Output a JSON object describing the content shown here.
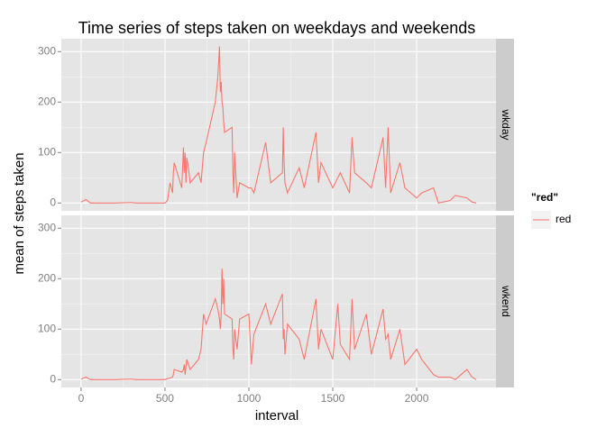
{
  "chart_data": {
    "type": "line",
    "title": "Time series of steps taken on weekdays and weekends",
    "x_label": "interval",
    "y_label": "mean of steps taken",
    "x": [
      0,
      30,
      55,
      100,
      200,
      300,
      330,
      400,
      500,
      515,
      530,
      545,
      550,
      555,
      600,
      610,
      615,
      620,
      625,
      630,
      640,
      650,
      700,
      715,
      730,
      745,
      800,
      815,
      825,
      830,
      835,
      840,
      845,
      850,
      855,
      900,
      905,
      910,
      915,
      930,
      945,
      1000,
      1015,
      1030,
      1100,
      1130,
      1200,
      1205,
      1210,
      1215,
      1230,
      1300,
      1330,
      1400,
      1415,
      1430,
      1500,
      1530,
      1545,
      1600,
      1615,
      1630,
      1700,
      1730,
      1800,
      1815,
      1830,
      1845,
      1900,
      1930,
      2000,
      2030,
      2100,
      2130,
      2200,
      2230,
      2300,
      2330,
      2355
    ],
    "xlim": [
      -117.75,
      2472.75
    ],
    "xticks": [
      0,
      500,
      1000,
      1500,
      2000
    ],
    "ylim": [
      -15.5,
      325.5
    ],
    "yticks": [
      0,
      100,
      200,
      300
    ],
    "grid": true,
    "facets": [
      {
        "label": "wkday",
        "values": [
          2,
          7,
          0,
          0,
          0,
          1,
          0,
          0,
          0,
          5,
          40,
          20,
          60,
          80,
          30,
          110,
          60,
          100,
          40,
          90,
          70,
          40,
          60,
          40,
          100,
          120,
          200,
          250,
          310,
          220,
          240,
          200,
          190,
          160,
          140,
          150,
          60,
          20,
          100,
          10,
          40,
          30,
          30,
          20,
          120,
          40,
          60,
          150,
          80,
          40,
          20,
          70,
          30,
          140,
          40,
          80,
          30,
          50,
          60,
          20,
          130,
          60,
          40,
          30,
          130,
          30,
          150,
          20,
          80,
          30,
          10,
          20,
          30,
          0,
          5,
          15,
          10,
          2,
          0
        ]
      },
      {
        "label": "wkend",
        "values": [
          1,
          5,
          0,
          0,
          0,
          1,
          0,
          0,
          0,
          2,
          3,
          5,
          10,
          20,
          15,
          20,
          30,
          10,
          25,
          40,
          30,
          20,
          40,
          60,
          130,
          110,
          160,
          140,
          120,
          100,
          130,
          220,
          150,
          200,
          130,
          120,
          60,
          40,
          100,
          60,
          120,
          130,
          30,
          90,
          150,
          110,
          170,
          80,
          100,
          50,
          110,
          80,
          40,
          160,
          60,
          100,
          40,
          150,
          70,
          40,
          160,
          60,
          130,
          50,
          140,
          80,
          90,
          40,
          100,
          30,
          60,
          40,
          10,
          5,
          5,
          0,
          20,
          5,
          0
        ]
      }
    ],
    "legend": {
      "title": "\"red\"",
      "name": "red",
      "color": "#F8766D"
    }
  }
}
